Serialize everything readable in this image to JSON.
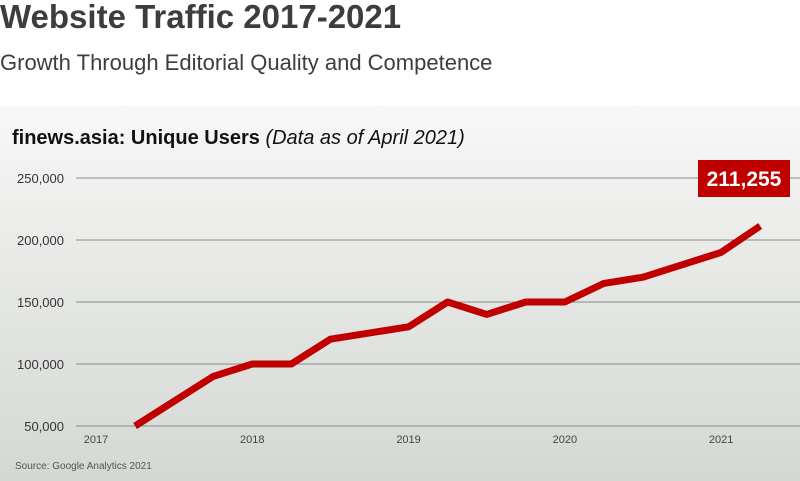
{
  "header": {
    "title": "Website Traffic 2017-2021",
    "subtitle": "Growth Through Editorial Quality and Competence"
  },
  "chart_heading": {
    "name": "finews.asia: Unique Users",
    "note": "(Data as of April 2021)"
  },
  "source": "Source: Google Analytics 2021",
  "chart_data": {
    "type": "line",
    "title": "finews.asia: Unique Users",
    "subtitle": "(Data as of April 2021)",
    "xlabel": "",
    "ylabel": "",
    "x_ticks": [
      "2017",
      "2018",
      "2019",
      "2020",
      "2021"
    ],
    "y_ticks": [
      "50,000",
      "100,000",
      "150,000",
      "200,000",
      "250,000"
    ],
    "ylim": [
      50000,
      250000
    ],
    "xlim": [
      2017.0,
      2021.3
    ],
    "grid": true,
    "series": [
      {
        "color": "#c00000",
        "points": [
          {
            "x": 2017.25,
            "y": 50000
          },
          {
            "x": 2017.75,
            "y": 90000
          },
          {
            "x": 2018.0,
            "y": 100000
          },
          {
            "x": 2018.25,
            "y": 100000
          },
          {
            "x": 2018.5,
            "y": 120000
          },
          {
            "x": 2019.0,
            "y": 130000
          },
          {
            "x": 2019.25,
            "y": 150000
          },
          {
            "x": 2019.5,
            "y": 140000
          },
          {
            "x": 2019.75,
            "y": 150000
          },
          {
            "x": 2020.0,
            "y": 150000
          },
          {
            "x": 2020.25,
            "y": 165000
          },
          {
            "x": 2020.5,
            "y": 170000
          },
          {
            "x": 2021.0,
            "y": 190000
          },
          {
            "x": 2021.25,
            "y": 211255
          }
        ]
      }
    ],
    "callout": {
      "label": "211,255",
      "color": "#c00000"
    }
  }
}
